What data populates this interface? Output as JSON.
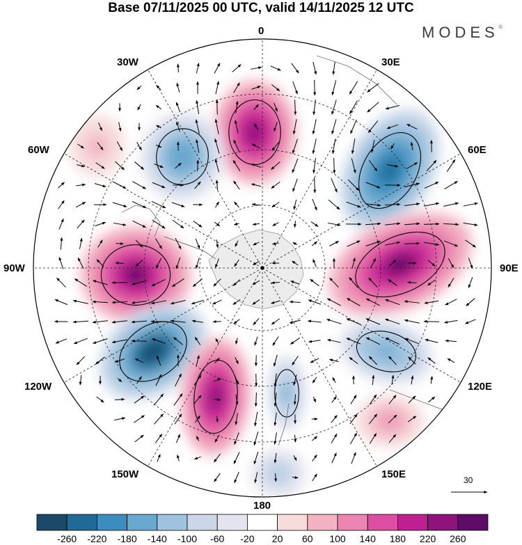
{
  "title": "Base 07/11/2025 00 UTC, valid 14/11/2025 12 UTC",
  "logo_text": "MODES",
  "logo_mark": "©",
  "longitude_labels": {
    "n0": "0",
    "n30e": "30E",
    "n60e": "60E",
    "n90e": "90E",
    "n120e": "120E",
    "n150e": "150E",
    "n180": "180",
    "n150w": "150W",
    "n120w": "120W",
    "n90w": "90W",
    "n60w": "60W",
    "n30w": "30W"
  },
  "reference_vector": {
    "value": "30"
  },
  "colorbar": {
    "ticks": [
      "-260",
      "-220",
      "-180",
      "-140",
      "-100",
      "-60",
      "-20",
      "20",
      "60",
      "100",
      "140",
      "180",
      "220",
      "260"
    ],
    "colors": [
      "#1b4a68",
      "#1f6a96",
      "#3a8dbd",
      "#6aa9cf",
      "#9fc3de",
      "#c9d7e9",
      "#e4e4ef",
      "#ffffff",
      "#f7dcdc",
      "#f2b3c3",
      "#ec86b0",
      "#dd4ea2",
      "#bf1f90",
      "#8e137d",
      "#5d0d68"
    ]
  },
  "anomaly_centers": [
    {
      "name": "positive-lon0",
      "value": 200
    },
    {
      "name": "negative-lon30w",
      "value": -150
    },
    {
      "name": "negative-lon60e",
      "value": -230
    },
    {
      "name": "positive-lon90e",
      "value": 240
    },
    {
      "name": "positive-lon90w",
      "value": 240
    },
    {
      "name": "negative-lon120w",
      "value": -260
    },
    {
      "name": "positive-lon150w",
      "value": 210
    },
    {
      "name": "negative-lon170w",
      "value": -120
    },
    {
      "name": "negative-lon120e",
      "value": -140
    },
    {
      "name": "positive-lon140e",
      "value": 80
    },
    {
      "name": "positive-lon60w",
      "value": 60
    },
    {
      "name": "negative-lon180",
      "value": -80
    }
  ]
}
